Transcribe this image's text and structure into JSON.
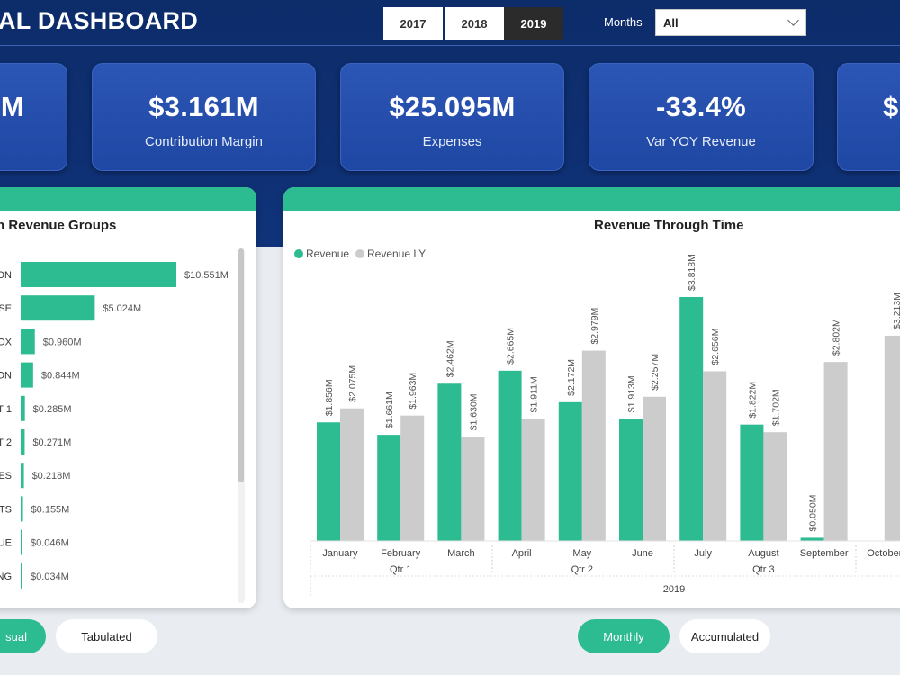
{
  "header": {
    "title": "AL DASHBOARD",
    "years": [
      {
        "label": "2017",
        "selected": false
      },
      {
        "label": "2018",
        "selected": false
      },
      {
        "label": "2019",
        "selected": true
      }
    ],
    "months_label": "Months",
    "months_value": "All"
  },
  "kpis": [
    {
      "value": "M",
      "label": ""
    },
    {
      "value": "$3.161M",
      "label": "Contribution Margin"
    },
    {
      "value": "$25.095M",
      "label": "Expenses"
    },
    {
      "value": "-33.4%",
      "label": "Var YOY Revenue"
    },
    {
      "value": "$",
      "label": ""
    }
  ],
  "left_panel": {
    "title": "n Revenue Groups",
    "toggles": [
      {
        "label": "sual",
        "selected": true
      },
      {
        "label": "Tabulated",
        "selected": false
      }
    ]
  },
  "right_panel": {
    "title": "Revenue Through Time",
    "toggles": [
      {
        "label": "Monthly",
        "selected": true
      },
      {
        "label": "Accumulated",
        "selected": false
      }
    ]
  },
  "colors": {
    "accent": "#2dbb92",
    "revenue_ly": "#cccccc",
    "navy": "#0e2f72",
    "card": "#2550b0"
  },
  "chart_data": [
    {
      "type": "bar",
      "orientation": "horizontal",
      "title": "n Revenue Groups",
      "categories": [
        "ON",
        "SE",
        "OX",
        "ON",
        "T 1",
        "T 2",
        "ES",
        "TS",
        "UE",
        "NG"
      ],
      "values": [
        10.551,
        5.024,
        0.96,
        0.844,
        0.285,
        0.271,
        0.218,
        0.155,
        0.046,
        0.034
      ],
      "data_labels": [
        "$10.551M",
        "$5.024M",
        "$0.960M",
        "$0.844M",
        "$0.285M",
        "$0.271M",
        "$0.218M",
        "$0.155M",
        "$0.046M",
        "$0.034M"
      ],
      "xlim": [
        0,
        11
      ]
    },
    {
      "type": "bar",
      "title": "Revenue Through Time",
      "legend_position": "top-left",
      "year_label": "2019",
      "quarters": [
        {
          "label": "Qtr 1",
          "months": 3
        },
        {
          "label": "Qtr 2",
          "months": 3
        },
        {
          "label": "Qtr 3",
          "months": 3
        }
      ],
      "categories": [
        "January",
        "February",
        "March",
        "April",
        "May",
        "June",
        "July",
        "August",
        "September",
        "October"
      ],
      "series": [
        {
          "name": "Revenue",
          "values": [
            1.856,
            1.661,
            2.462,
            2.665,
            2.172,
            1.913,
            3.818,
            1.822,
            0.05,
            null
          ],
          "labels": [
            "$1.856M",
            "$1.661M",
            "$2.462M",
            "$2.665M",
            "$2.172M",
            "$1.913M",
            "$3.818M",
            "$1.822M",
            "$0.050M",
            ""
          ]
        },
        {
          "name": "Revenue LY",
          "values": [
            2.075,
            1.963,
            1.63,
            1.911,
            2.979,
            2.257,
            2.656,
            1.702,
            2.802,
            3.213
          ],
          "labels": [
            "$2.075M",
            "$1.963M",
            "$1.630M",
            "$1.911M",
            "$2.979M",
            "$2.257M",
            "$2.656M",
            "$1.702M",
            "$2.802M",
            "$3.213M"
          ]
        }
      ],
      "ylim": [
        0,
        4.0
      ]
    }
  ]
}
